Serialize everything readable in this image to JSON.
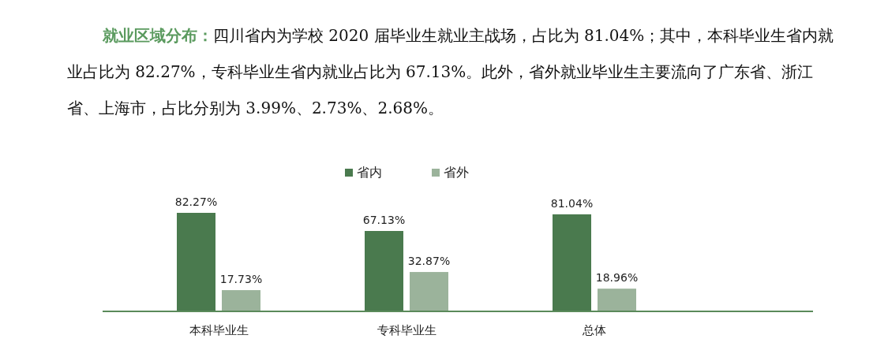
{
  "chart_data": {
    "type": "bar",
    "title": "就业区域分布：",
    "annotations": [
      "四川省内为学校 2020 届毕业生就业主战场，占比为 81.04%；其中，本科毕业生省内就业占比为 82.27%，专科毕业生省内就业占比为 67.13%。此外，省外就业毕业生主要流向了广东省、浙江省、上海市，占比分别为 3.99%、2.73%、2.68%。"
    ],
    "categories": [
      "本科毕业生",
      "专科毕业生",
      "总体"
    ],
    "series": [
      {
        "name": "省内",
        "color": "#4a7a4e",
        "values": [
          82.27,
          67.13,
          81.04
        ],
        "value_labels": [
          "82.27%",
          "67.13%",
          "81.04%"
        ]
      },
      {
        "name": "省外",
        "color": "#9bb39b",
        "values": [
          17.73,
          32.87,
          18.96
        ],
        "value_labels": [
          "17.73%",
          "32.87%",
          "18.96%"
        ]
      }
    ],
    "legend": "top"
  }
}
